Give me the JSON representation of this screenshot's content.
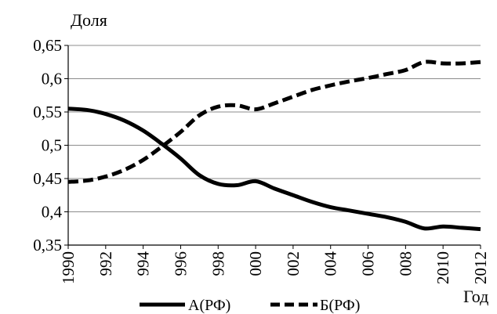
{
  "chart_data": {
    "type": "line",
    "ylabel": "Доля",
    "xlabel": "Год",
    "ylim": [
      0.35,
      0.65
    ],
    "y_ticks": [
      {
        "value": 0.35,
        "label": "0,35"
      },
      {
        "value": 0.4,
        "label": "0,4"
      },
      {
        "value": 0.45,
        "label": "0,45"
      },
      {
        "value": 0.5,
        "label": "0,5"
      },
      {
        "value": 0.55,
        "label": "0,55"
      },
      {
        "value": 0.6,
        "label": "0,6"
      },
      {
        "value": 0.65,
        "label": "0,65"
      }
    ],
    "x_ticks": [
      {
        "value": 1990,
        "label": "1990"
      },
      {
        "value": 1992,
        "label": "992"
      },
      {
        "value": 1994,
        "label": "994"
      },
      {
        "value": 1996,
        "label": "996"
      },
      {
        "value": 1998,
        "label": "998"
      },
      {
        "value": 2000,
        "label": "000"
      },
      {
        "value": 2002,
        "label": "002"
      },
      {
        "value": 2004,
        "label": "004"
      },
      {
        "value": 2006,
        "label": "006"
      },
      {
        "value": 2008,
        "label": "008"
      },
      {
        "value": 2010,
        "label": "2010"
      },
      {
        "value": 2012,
        "label": "2012"
      }
    ],
    "x": [
      1990,
      1991,
      1992,
      1993,
      1994,
      1995,
      1996,
      1997,
      1998,
      1999,
      2000,
      2001,
      2002,
      2003,
      2004,
      2005,
      2006,
      2007,
      2008,
      2009,
      2010,
      2011,
      2012
    ],
    "series": [
      {
        "name": "А(РФ)",
        "style": "solid",
        "values": [
          0.555,
          0.553,
          0.547,
          0.537,
          0.522,
          0.502,
          0.48,
          0.455,
          0.442,
          0.44,
          0.446,
          0.435,
          0.425,
          0.415,
          0.407,
          0.402,
          0.397,
          0.392,
          0.385,
          0.375,
          0.378,
          0.376,
          0.374
        ]
      },
      {
        "name": "Б(РФ)",
        "style": "dashed",
        "values": [
          0.445,
          0.447,
          0.453,
          0.463,
          0.478,
          0.498,
          0.52,
          0.545,
          0.558,
          0.56,
          0.554,
          0.563,
          0.573,
          0.583,
          0.59,
          0.596,
          0.601,
          0.607,
          0.613,
          0.625,
          0.623,
          0.623,
          0.625
        ]
      }
    ],
    "grid": {
      "horizontal": true,
      "vertical": false
    },
    "legend_position": "bottom"
  }
}
